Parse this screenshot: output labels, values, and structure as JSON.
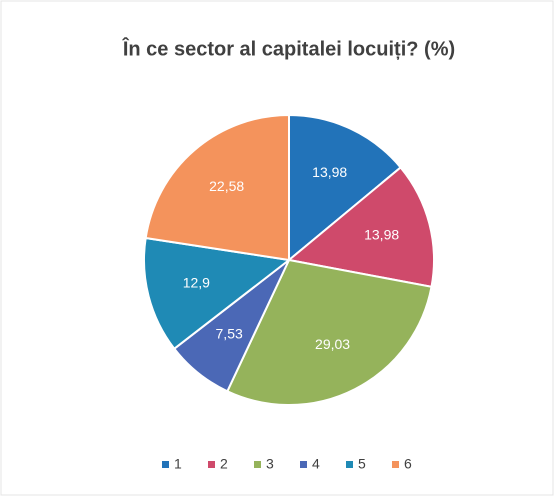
{
  "chart_data": {
    "type": "pie",
    "title": "În ce sector al capitalei locuiți? (%)",
    "categories": [
      "1",
      "2",
      "3",
      "4",
      "5",
      "6"
    ],
    "values": [
      13.98,
      13.98,
      29.03,
      7.53,
      12.9,
      22.58
    ],
    "value_labels": [
      "13,98",
      "13,98",
      "29,03",
      "7,53",
      "12,9",
      "22,58"
    ],
    "colors": [
      "#2273b9",
      "#cf4a6b",
      "#95b35b",
      "#4b68b6",
      "#1f8ab5",
      "#f4935c"
    ],
    "legend": "bottom"
  }
}
